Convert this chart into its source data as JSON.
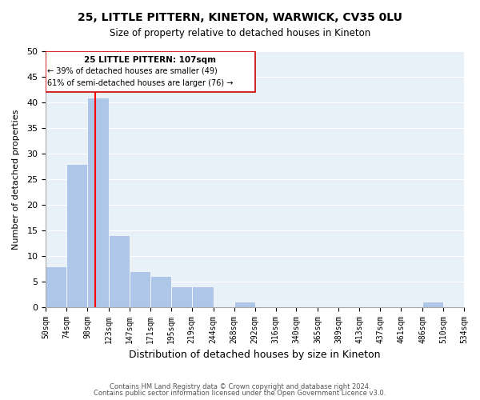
{
  "title": "25, LITTLE PITTERN, KINETON, WARWICK, CV35 0LU",
  "subtitle": "Size of property relative to detached houses in Kineton",
  "xlabel": "Distribution of detached houses by size in Kineton",
  "ylabel": "Number of detached properties",
  "bin_edges": [
    50,
    74,
    98,
    123,
    147,
    171,
    195,
    219,
    244,
    268,
    292,
    316,
    340,
    365,
    389,
    413,
    437,
    461,
    486,
    510,
    534
  ],
  "bin_labels": [
    "50sqm",
    "74sqm",
    "98sqm",
    "123sqm",
    "147sqm",
    "171sqm",
    "195sqm",
    "219sqm",
    "244sqm",
    "268sqm",
    "292sqm",
    "316sqm",
    "340sqm",
    "365sqm",
    "389sqm",
    "413sqm",
    "437sqm",
    "461sqm",
    "486sqm",
    "510sqm",
    "534sqm"
  ],
  "counts": [
    8,
    28,
    41,
    14,
    7,
    6,
    4,
    4,
    0,
    1,
    0,
    0,
    0,
    0,
    0,
    0,
    0,
    0,
    1,
    0
  ],
  "bar_color": "#aec6e8",
  "bar_edge_color": "#aec6e8",
  "grid_color": "#ffffff",
  "bg_color": "#e8f0f8",
  "property_line_x": 107,
  "property_line_color": "#ff0000",
  "ylim": [
    0,
    50
  ],
  "annotation_title": "25 LITTLE PITTERN: 107sqm",
  "annotation_line1": "← 39% of detached houses are smaller (49)",
  "annotation_line2": "61% of semi-detached houses are larger (76) →",
  "footnote1": "Contains HM Land Registry data © Crown copyright and database right 2024.",
  "footnote2": "Contains public sector information licensed under the Open Government Licence v3.0."
}
